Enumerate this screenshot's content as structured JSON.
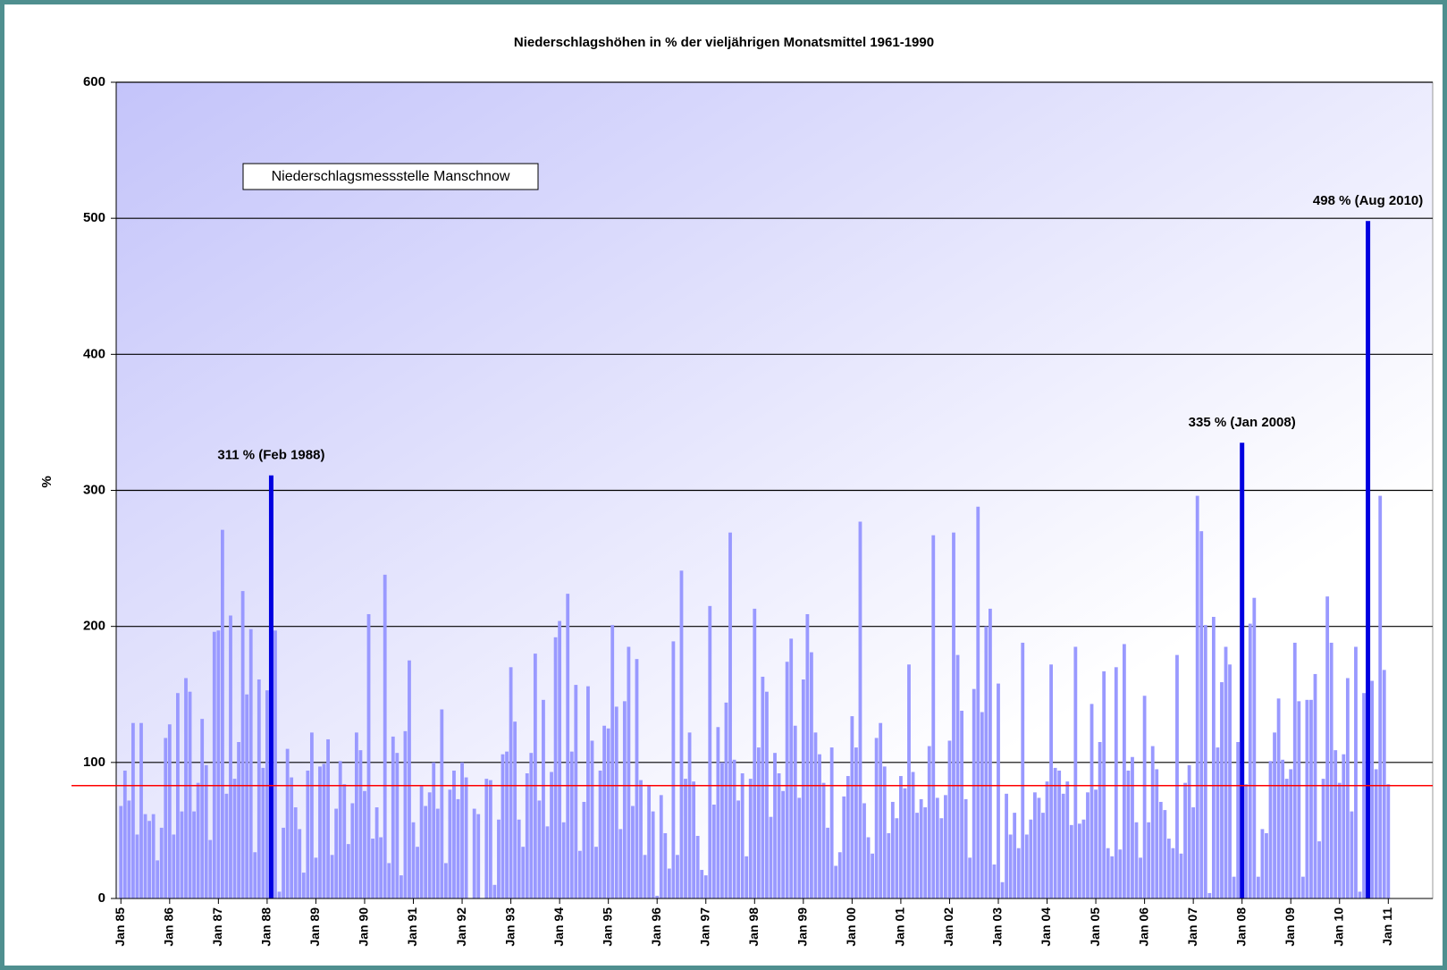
{
  "chart_data": {
    "type": "bar",
    "title": "Niederschlagshöhen in % der vieljährigen Monatsmittel 1961-1990",
    "ylabel": "%",
    "label_box": "Niederschlagsmessstelle Manschnow",
    "color": "#9999ff",
    "highlight_color": "#0000e0",
    "reference_line": 83,
    "reference_color": "#ff0000",
    "grid": true,
    "ylim": [
      0,
      600
    ],
    "yticks": [
      0,
      100,
      200,
      300,
      400,
      500,
      600
    ],
    "annotations": [
      {
        "text": "311 % (Feb 1988)",
        "index": 37
      },
      {
        "text": "335 % (Jan 2008)",
        "index": 276
      },
      {
        "text": "498 % (Aug 2010)",
        "index": 307
      }
    ],
    "categories": [
      "Jan 85",
      null,
      null,
      null,
      null,
      null,
      null,
      null,
      null,
      null,
      null,
      null,
      "Jan 86",
      null,
      null,
      null,
      null,
      null,
      null,
      null,
      null,
      null,
      null,
      null,
      "Jan 87",
      null,
      null,
      null,
      null,
      null,
      null,
      null,
      null,
      null,
      null,
      null,
      "Jan 88",
      null,
      null,
      null,
      null,
      null,
      null,
      null,
      null,
      null,
      null,
      null,
      "Jan 89",
      null,
      null,
      null,
      null,
      null,
      null,
      null,
      null,
      null,
      null,
      null,
      "Jan 90",
      null,
      null,
      null,
      null,
      null,
      null,
      null,
      null,
      null,
      null,
      null,
      "Jan 91",
      null,
      null,
      null,
      null,
      null,
      null,
      null,
      null,
      null,
      null,
      null,
      "Jan 92",
      null,
      null,
      null,
      null,
      null,
      null,
      null,
      null,
      null,
      null,
      null,
      "Jan 93",
      null,
      null,
      null,
      null,
      null,
      null,
      null,
      null,
      null,
      null,
      null,
      "Jan 94",
      null,
      null,
      null,
      null,
      null,
      null,
      null,
      null,
      null,
      null,
      null,
      "Jan 95",
      null,
      null,
      null,
      null,
      null,
      null,
      null,
      null,
      null,
      null,
      null,
      "Jan 96",
      null,
      null,
      null,
      null,
      null,
      null,
      null,
      null,
      null,
      null,
      null,
      "Jan 97",
      null,
      null,
      null,
      null,
      null,
      null,
      null,
      null,
      null,
      null,
      null,
      "Jan 98",
      null,
      null,
      null,
      null,
      null,
      null,
      null,
      null,
      null,
      null,
      null,
      "Jan 99",
      null,
      null,
      null,
      null,
      null,
      null,
      null,
      null,
      null,
      null,
      null,
      "Jan 00",
      null,
      null,
      null,
      null,
      null,
      null,
      null,
      null,
      null,
      null,
      null,
      "Jan 01",
      null,
      null,
      null,
      null,
      null,
      null,
      null,
      null,
      null,
      null,
      null,
      "Jan 02",
      null,
      null,
      null,
      null,
      null,
      null,
      null,
      null,
      null,
      null,
      null,
      "Jan 03",
      null,
      null,
      null,
      null,
      null,
      null,
      null,
      null,
      null,
      null,
      null,
      "Jan 04",
      null,
      null,
      null,
      null,
      null,
      null,
      null,
      null,
      null,
      null,
      null,
      "Jan 05",
      null,
      null,
      null,
      null,
      null,
      null,
      null,
      null,
      null,
      null,
      null,
      "Jan 06",
      null,
      null,
      null,
      null,
      null,
      null,
      null,
      null,
      null,
      null,
      null,
      "Jan 07",
      null,
      null,
      null,
      null,
      null,
      null,
      null,
      null,
      null,
      null,
      null,
      "Jan 08",
      null,
      null,
      null,
      null,
      null,
      null,
      null,
      null,
      null,
      null,
      null,
      "Jan 09",
      null,
      null,
      null,
      null,
      null,
      null,
      null,
      null,
      null,
      null,
      null,
      "Jan 10",
      null,
      null,
      null,
      null,
      null,
      null,
      null,
      null,
      null,
      null,
      null,
      "Jan 11"
    ],
    "values": [
      68,
      94,
      72,
      129,
      47,
      129,
      62,
      57,
      62,
      28,
      52,
      118,
      128,
      47,
      151,
      64,
      162,
      152,
      64,
      85,
      132,
      98,
      43,
      196,
      197,
      271,
      77,
      208,
      88,
      115,
      226,
      150,
      198,
      34,
      161,
      96,
      153,
      311,
      197,
      5,
      52,
      110,
      89,
      67,
      51,
      19,
      94,
      122,
      30,
      97,
      99,
      117,
      32,
      66,
      101,
      84,
      40,
      70,
      122,
      109,
      79,
      209,
      44,
      67,
      45,
      238,
      26,
      119,
      107,
      17,
      123,
      175,
      56,
      38,
      83,
      68,
      78,
      100,
      66,
      139,
      26,
      80,
      94,
      73,
      100,
      89,
      0,
      66,
      62,
      0,
      88,
      87,
      10,
      58,
      106,
      108,
      170,
      130,
      58,
      38,
      92,
      107,
      180,
      72,
      146,
      53,
      93,
      192,
      204,
      56,
      224,
      108,
      157,
      35,
      71,
      156,
      116,
      38,
      94,
      127,
      125,
      201,
      141,
      51,
      145,
      185,
      68,
      176,
      87,
      32,
      83,
      64,
      2,
      76,
      48,
      22,
      189,
      32,
      241,
      88,
      122,
      86,
      46,
      21,
      17,
      215,
      69,
      126,
      100,
      144,
      269,
      102,
      72,
      92,
      31,
      88,
      213,
      111,
      163,
      152,
      60,
      107,
      92,
      79,
      174,
      191,
      127,
      74,
      161,
      209,
      181,
      122,
      106,
      85,
      52,
      111,
      24,
      34,
      75,
      90,
      134,
      111,
      277,
      70,
      45,
      33,
      118,
      129,
      97,
      48,
      71,
      59,
      90,
      81,
      172,
      93,
      63,
      73,
      67,
      112,
      267,
      74,
      59,
      76,
      116,
      269,
      179,
      138,
      73,
      30,
      154,
      288,
      137,
      200,
      213,
      25,
      158,
      12,
      77,
      47,
      63,
      37,
      188,
      47,
      58,
      78,
      74,
      63,
      86,
      172,
      96,
      94,
      77,
      86,
      54,
      185,
      55,
      58,
      78,
      143,
      80,
      115,
      167,
      37,
      31,
      170,
      36,
      187,
      94,
      104,
      56,
      30,
      149,
      56,
      112,
      95,
      71,
      65,
      44,
      37,
      179,
      33,
      85,
      98,
      67,
      296,
      270,
      201,
      4,
      207,
      111,
      159,
      185,
      172,
      16,
      115,
      335,
      84,
      202,
      221,
      16,
      51,
      48,
      101,
      122,
      147,
      102,
      88,
      95,
      188,
      145,
      16,
      146,
      146,
      165,
      42,
      88,
      222,
      188,
      109,
      85,
      106,
      162,
      64,
      185,
      5,
      151,
      498,
      160,
      95,
      296,
      168,
      84
    ]
  }
}
